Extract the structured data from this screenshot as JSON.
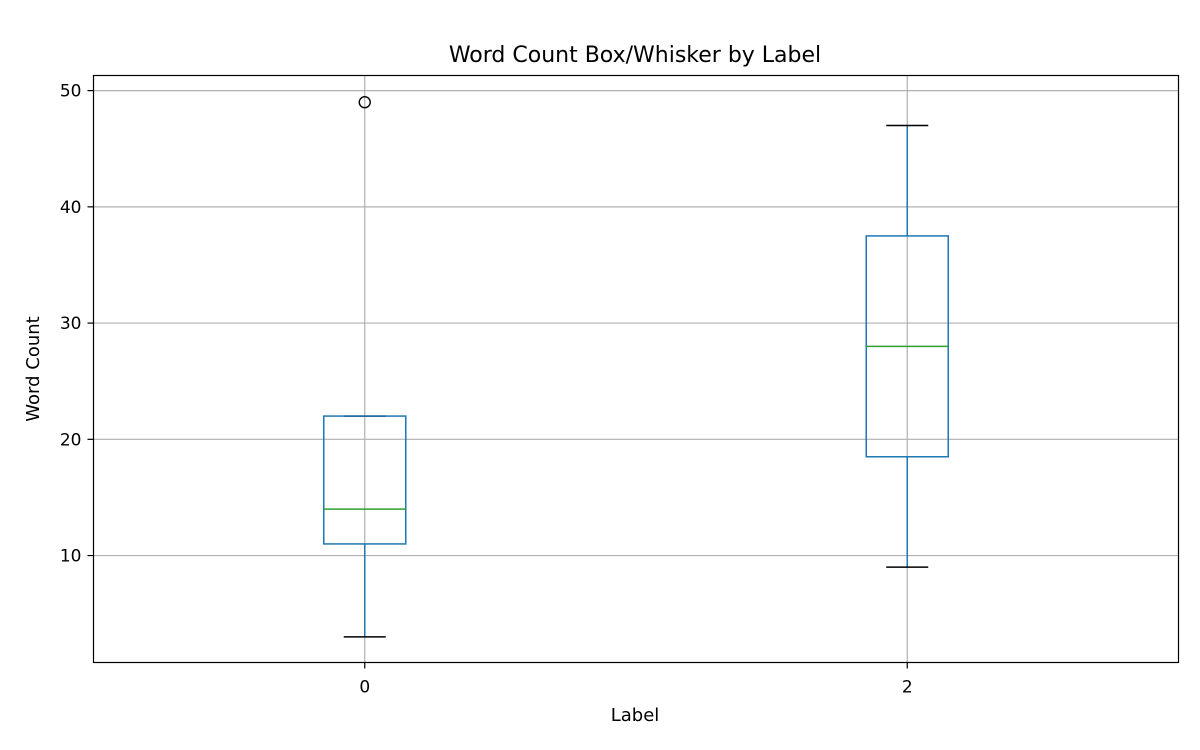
{
  "chart_data": {
    "type": "box",
    "title": "Word Count Box/Whisker by Label",
    "xlabel": "Label",
    "ylabel": "Word Count",
    "categories": [
      "0",
      "2"
    ],
    "ylim": [
      0.8,
      51.3
    ],
    "yticks": [
      10,
      20,
      30,
      40,
      50
    ],
    "grid": true,
    "boxes": [
      {
        "label": "0",
        "whisker_low": 3,
        "q1": 11,
        "median": 14,
        "q3": 22,
        "whisker_high": 22,
        "outliers": [
          49
        ]
      },
      {
        "label": "2",
        "whisker_low": 9,
        "q1": 18.5,
        "median": 28,
        "q3": 37.5,
        "whisker_high": 47,
        "outliers": []
      }
    ]
  },
  "colors": {
    "box": "#1f77b4",
    "median": "#2ca02c",
    "whisker_cap": "#000000",
    "grid": "#b0b0b0",
    "axes": "#000000"
  }
}
